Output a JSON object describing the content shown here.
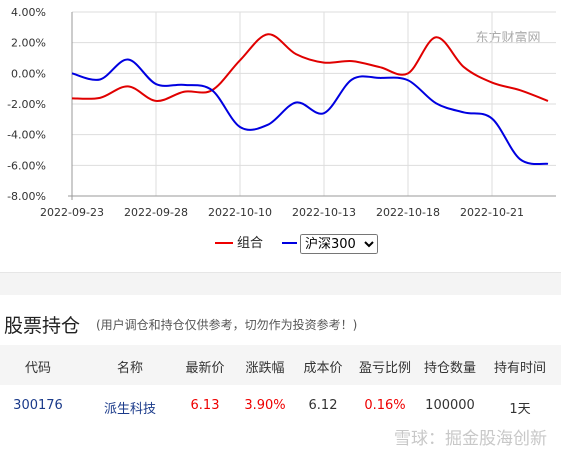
{
  "chart_data": {
    "type": "line",
    "watermark": "东方财富网",
    "categories": [
      "2022-09-23",
      null,
      null,
      "2022-09-28",
      null,
      null,
      "2022-10-10",
      null,
      null,
      "2022-10-13",
      null,
      null,
      "2022-10-18",
      null,
      null,
      "2022-10-21",
      null,
      null
    ],
    "series": [
      {
        "name": "组合",
        "color": "#e00000",
        "values": [
          -1.63,
          -1.6,
          -0.85,
          -1.8,
          -1.2,
          -1.1,
          0.85,
          2.55,
          1.25,
          0.7,
          0.8,
          0.4,
          0.0,
          2.35,
          0.4,
          -0.6,
          -1.1,
          -1.8
        ]
      },
      {
        "name": "沪深300",
        "color": "#0000e0",
        "values": [
          0.0,
          -0.4,
          0.9,
          -0.7,
          -0.75,
          -1.1,
          -3.5,
          -3.35,
          -1.9,
          -2.6,
          -0.4,
          -0.3,
          -0.45,
          -1.95,
          -2.55,
          -2.95,
          -5.6,
          -5.9
        ]
      }
    ],
    "ylim": [
      -8,
      4
    ],
    "yticks": [
      {
        "value": -8,
        "label": "-8.00%"
      },
      {
        "value": -6,
        "label": "-6.00%"
      },
      {
        "value": -4,
        "label": "-4.00%"
      },
      {
        "value": -2,
        "label": "-2.00%"
      },
      {
        "value": 0,
        "label": "0.00%"
      },
      {
        "value": 2,
        "label": "2.00%"
      },
      {
        "value": 4,
        "label": "4.00%"
      }
    ],
    "grid": true
  },
  "section": {
    "title": "股票持仓",
    "note": "(用户调仓和持仓仅供参考，切勿作为投资参考！)"
  },
  "table": {
    "header": [
      "代码",
      "名称",
      "最新价",
      "涨跌幅",
      "成本价",
      "盈亏比例",
      "持仓数量",
      "持有时间"
    ],
    "rows": [
      [
        "300176",
        "派生科技",
        "6.13",
        "3.90%",
        "6.12",
        "0.16%",
        "100000",
        "1天"
      ]
    ]
  },
  "footer": {
    "watermark": "雪球：掘金股海创新"
  }
}
